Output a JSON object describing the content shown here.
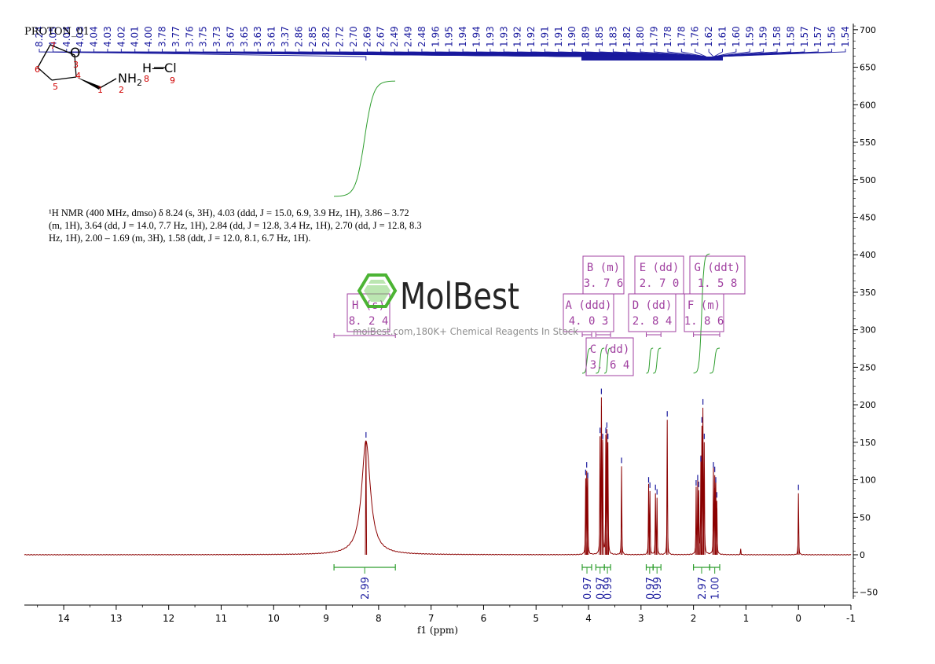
{
  "spectrum_title": "PROTON_01",
  "structure": {
    "atom_labels": [
      "1",
      "2",
      "3",
      "4",
      "5",
      "6",
      "7",
      "8",
      "9"
    ],
    "atom_O": "O",
    "group_amine": "NH",
    "amine_subscript": "2",
    "group_hcl": "H—Cl"
  },
  "nmr_description": {
    "line1": "¹H NMR (400 MHz, dmso) δ 8.24 (s, 3H), 4.03 (ddd, J = 15.0, 6.9, 3.9 Hz, 1H), 3.86 – 3.72",
    "line2": "(m, 1H), 3.64 (dd, J = 14.0, 7.7 Hz, 1H), 2.84 (dd, J = 12.8, 3.4 Hz, 1H), 2.70 (dd, J = 12.8, 8.3",
    "line3": "Hz, 1H), 2.00 – 1.69 (m, 3H), 1.58 (ddt, J = 12.0, 8.1, 6.7 Hz, 1H)."
  },
  "watermark": {
    "brand": "MolBest",
    "tagline": "molBest.com,180K+ Chemical Reagents In Stock"
  },
  "chart_data": {
    "type": "line",
    "xlabel": "f1 (ppm)",
    "xlim": [
      14.75,
      -1.0
    ],
    "ylim": [
      -60,
      710
    ],
    "x_ticks": [
      14,
      13,
      12,
      11,
      10,
      9,
      8,
      7,
      6,
      5,
      4,
      3,
      2,
      1,
      0,
      -1
    ],
    "y_ticks": [
      700,
      650,
      600,
      550,
      500,
      450,
      400,
      350,
      300,
      250,
      200,
      150,
      100,
      50,
      0,
      -50
    ],
    "series": [
      {
        "peaks": [
          {
            "x": 8.24,
            "y": 152,
            "w": 0.1,
            "type": "L"
          },
          {
            "x": 4.055,
            "y": 102
          },
          {
            "x": 4.035,
            "y": 112
          },
          {
            "x": 4.015,
            "y": 98
          },
          {
            "x": 3.78,
            "y": 158
          },
          {
            "x": 3.755,
            "y": 210
          },
          {
            "x": 3.73,
            "y": 150
          },
          {
            "x": 3.67,
            "y": 158
          },
          {
            "x": 3.65,
            "y": 165
          },
          {
            "x": 3.63,
            "y": 150
          },
          {
            "x": 3.37,
            "y": 118
          },
          {
            "x": 2.855,
            "y": 92
          },
          {
            "x": 2.83,
            "y": 85
          },
          {
            "x": 2.725,
            "y": 82
          },
          {
            "x": 2.695,
            "y": 76
          },
          {
            "x": 2.5,
            "y": 180
          },
          {
            "x": 1.95,
            "y": 88
          },
          {
            "x": 1.92,
            "y": 95
          },
          {
            "x": 1.9,
            "y": 86
          },
          {
            "x": 1.86,
            "y": 120
          },
          {
            "x": 1.84,
            "y": 172
          },
          {
            "x": 1.82,
            "y": 196
          },
          {
            "x": 1.795,
            "y": 150
          },
          {
            "x": 1.62,
            "y": 112
          },
          {
            "x": 1.595,
            "y": 106
          },
          {
            "x": 1.575,
            "y": 92
          },
          {
            "x": 1.555,
            "y": 72
          },
          {
            "x": 1.1,
            "y": 8
          },
          {
            "x": 0.0,
            "y": 82
          }
        ]
      }
    ],
    "peak_labels": [
      "8.24",
      "4.05",
      "4.04",
      "4.03",
      "4.04",
      "4.03",
      "4.02",
      "4.01",
      "4.00",
      "3.78",
      "3.77",
      "3.76",
      "3.75",
      "3.73",
      "3.67",
      "3.65",
      "3.63",
      "3.61",
      "3.37",
      "2.86",
      "2.85",
      "2.82",
      "2.72",
      "2.70",
      "2.69",
      "2.67",
      "2.49",
      "2.49",
      "2.48",
      "1.96",
      "1.95",
      "1.94",
      "1.94",
      "1.93",
      "1.93",
      "1.92",
      "1.92",
      "1.91",
      "1.91",
      "1.90",
      "1.89",
      "1.85",
      "1.83",
      "1.82",
      "1.80",
      "1.79",
      "1.78",
      "1.78",
      "1.76",
      "1.62",
      "1.61",
      "1.60",
      "1.59",
      "1.59",
      "1.58",
      "1.58",
      "1.57",
      "1.57",
      "1.56",
      "1.54"
    ],
    "multiplets": [
      {
        "letter": "A",
        "mult": "ddd",
        "shift": "4.03"
      },
      {
        "letter": "B",
        "mult": "m",
        "shift": "3.76"
      },
      {
        "letter": "C",
        "mult": "dd",
        "shift": "3.64"
      },
      {
        "letter": "D",
        "mult": "dd",
        "shift": "2.84"
      },
      {
        "letter": "E",
        "mult": "dd",
        "shift": "2.70"
      },
      {
        "letter": "F",
        "mult": "m",
        "shift": "1.86"
      },
      {
        "letter": "G",
        "mult": "ddt",
        "shift": "1.58"
      },
      {
        "letter": "H",
        "mult": "s",
        "shift": "8.24"
      }
    ],
    "integrals": [
      {
        "from": 8.85,
        "to": 7.68,
        "value": "2.99"
      },
      {
        "from": 4.12,
        "to": 3.94,
        "value": "0.97"
      },
      {
        "from": 3.86,
        "to": 3.7,
        "value": "0.97"
      },
      {
        "from": 3.7,
        "to": 3.58,
        "value": "0.99"
      },
      {
        "from": 2.9,
        "to": 2.77,
        "value": "0.97"
      },
      {
        "from": 2.77,
        "to": 2.62,
        "value": "0.99"
      },
      {
        "from": 2.0,
        "to": 1.69,
        "value": "2.97"
      },
      {
        "from": 1.69,
        "to": 1.5,
        "value": "1.00"
      }
    ],
    "colors": {
      "spectrum": "#8b0000",
      "peak_ticks": "#1a1a9e",
      "integral": "#2e9e2e",
      "box": "#a040a0",
      "watermark": "#43b02a"
    }
  }
}
